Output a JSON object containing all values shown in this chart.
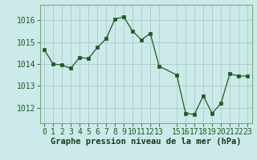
{
  "x": [
    0,
    1,
    2,
    3,
    4,
    5,
    6,
    7,
    8,
    9,
    10,
    11,
    12,
    13,
    15,
    16,
    17,
    18,
    19,
    20,
    21,
    22,
    23
  ],
  "y": [
    1014.65,
    1014.0,
    1013.95,
    1013.8,
    1014.3,
    1014.25,
    1014.75,
    1015.15,
    1016.05,
    1016.15,
    1015.5,
    1015.1,
    1015.4,
    1013.9,
    1013.5,
    1011.75,
    1011.7,
    1012.55,
    1011.75,
    1012.2,
    1013.55,
    1013.45,
    1013.45
  ],
  "line_color": "#1e5c1e",
  "marker_color": "#1e5c1e",
  "bg_color": "#cceaea",
  "grid_color": "#b0c8c8",
  "border_color": "#7aaa7a",
  "xlabel": "Graphe pression niveau de la mer (hPa)",
  "xlabel_color": "#1a3a1a",
  "xtick_labels": [
    "0",
    "1",
    "2",
    "3",
    "4",
    "5",
    "6",
    "7",
    "8",
    "9",
    "10",
    "11",
    "12",
    "13",
    "15",
    "16",
    "17",
    "18",
    "19",
    "20",
    "21",
    "22",
    "23"
  ],
  "ytick_labels": [
    "1012",
    "1013",
    "1014",
    "1015",
    "1016"
  ],
  "yticks": [
    1012,
    1013,
    1014,
    1015,
    1016
  ],
  "ylim": [
    1011.3,
    1016.7
  ],
  "xlim": [
    -0.5,
    23.5
  ],
  "tick_color": "#1e5c1e",
  "font_size_xlabel": 7.5,
  "font_size_ticks": 7.0,
  "linewidth": 0.9,
  "markersize": 2.2
}
